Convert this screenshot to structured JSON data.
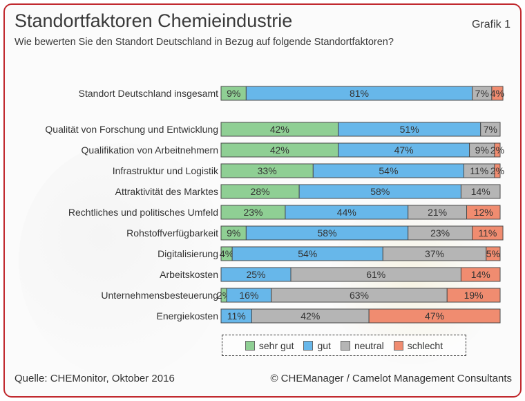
{
  "header": {
    "title": "Standortfaktoren Chemieindustrie",
    "grafik": "Grafik 1",
    "subtitle": "Wie bewerten Sie den Standort Deutschland in Bezug auf folgende Standortfaktoren?"
  },
  "colors": {
    "sehr_gut": "#8fcf94",
    "gut": "#67b7ea",
    "neutral": "#b5b5b5",
    "schlecht": "#f08c70",
    "frame": "#c0282d",
    "bar_border": "#4a4a4a"
  },
  "chart_data": {
    "type": "bar",
    "orientation": "horizontal",
    "stacked": true,
    "title": "Standortfaktoren Chemieindustrie",
    "unit": "%",
    "xlim": [
      0,
      100
    ],
    "categories": [
      "Standort Deutschland insgesamt",
      "Qualität von Forschung und Entwicklung",
      "Qualifikation von Arbeitnehmern",
      "Infrastruktur und Logistik",
      "Attraktivität des Marktes",
      "Rechtliches und politisches Umfeld",
      "Rohstoffverfügbarkeit",
      "Digitalisierung",
      "Arbeitskosten",
      "Unternehmensbesteuerung",
      "Energiekosten"
    ],
    "series": [
      {
        "name": "sehr gut",
        "values": [
          9,
          42,
          42,
          33,
          28,
          23,
          9,
          4,
          0,
          2,
          0
        ]
      },
      {
        "name": "gut",
        "values": [
          81,
          51,
          47,
          54,
          58,
          44,
          58,
          54,
          25,
          16,
          11
        ]
      },
      {
        "name": "neutral",
        "values": [
          7,
          7,
          9,
          11,
          14,
          21,
          23,
          37,
          61,
          63,
          42
        ]
      },
      {
        "name": "schlecht",
        "values": [
          4,
          0,
          2,
          2,
          0,
          12,
          11,
          5,
          14,
          19,
          47
        ]
      }
    ]
  },
  "legend": {
    "items": [
      {
        "label": "sehr gut",
        "key": "sehr_gut"
      },
      {
        "label": "gut",
        "key": "gut"
      },
      {
        "label": "neutral",
        "key": "neutral"
      },
      {
        "label": "schlecht",
        "key": "schlecht"
      }
    ]
  },
  "footer": {
    "source": "Quelle: CHEMonitor, Oktober 2016",
    "copyright": "© CHEManager / Camelot Management Consultants"
  }
}
